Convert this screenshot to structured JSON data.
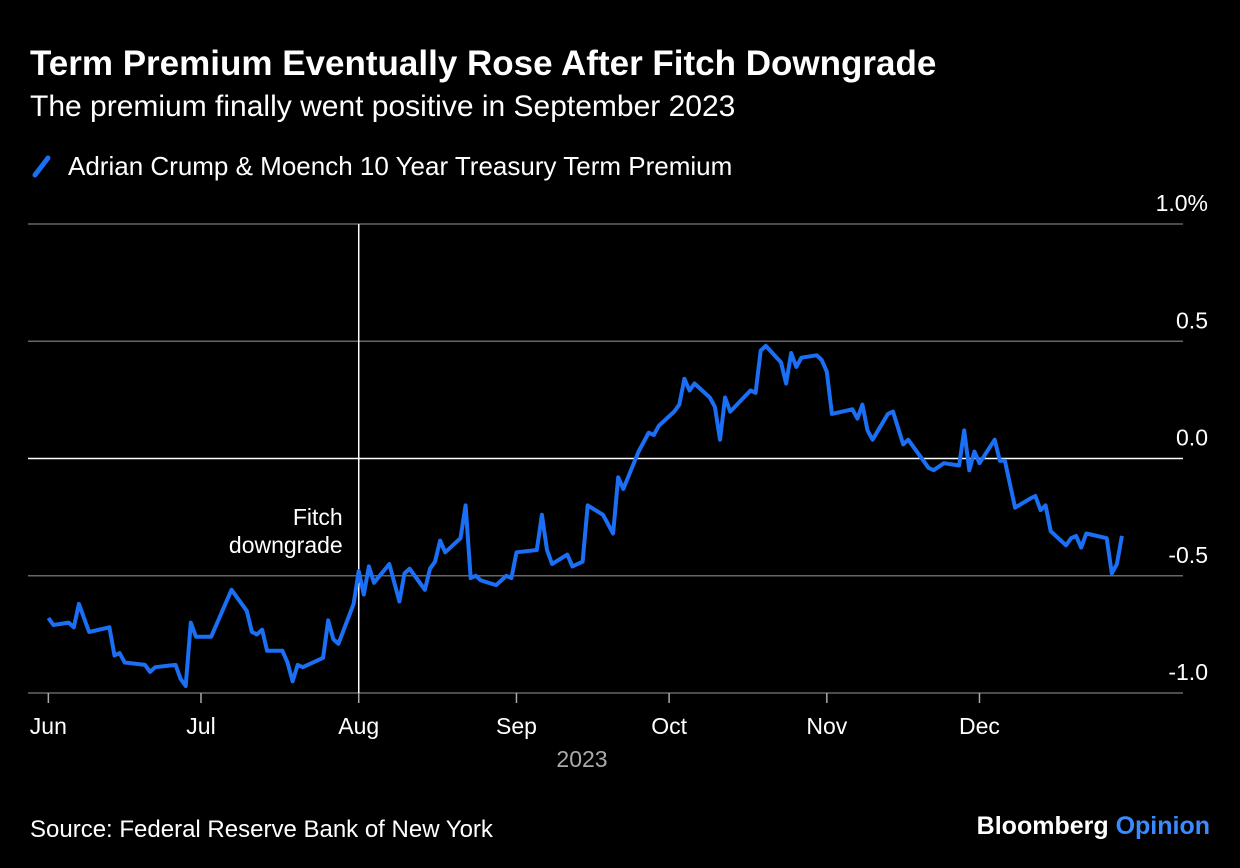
{
  "chart_data": {
    "type": "line",
    "title": "Term Premium Eventually Rose After Fitch Downgrade",
    "subtitle": "The premium finally went positive in September 2023",
    "xlabel": "2023",
    "source": "Source: Federal Reserve Bank of New York",
    "brand": [
      "Bloomberg",
      "Opinion"
    ],
    "annotation": {
      "x": "2023-08-01",
      "label": [
        "Fitch",
        "downgrade"
      ]
    },
    "xlim": [
      "2023-05-28",
      "2024-01-10"
    ],
    "xticks": [
      {
        "value": "2023-06-01",
        "label": "Jun"
      },
      {
        "value": "2023-07-01",
        "label": "Jul"
      },
      {
        "value": "2023-08-01",
        "label": "Aug"
      },
      {
        "value": "2023-09-01",
        "label": "Sep"
      },
      {
        "value": "2023-10-01",
        "label": "Oct"
      },
      {
        "value": "2023-11-01",
        "label": "Nov"
      },
      {
        "value": "2023-12-01",
        "label": "Dec"
      }
    ],
    "ylim": [
      -1.0,
      1.0
    ],
    "yticks": [
      {
        "value": 1,
        "label": "1.0%"
      },
      {
        "value": 0.5,
        "label": "0.5"
      },
      {
        "value": 0,
        "label": "0.0"
      },
      {
        "value": -0.5,
        "label": "-0.5"
      },
      {
        "value": -1,
        "label": "-1.0"
      }
    ],
    "grid": true,
    "x": [
      "2023-06-01",
      "2023-06-02",
      "2023-06-05",
      "2023-06-06",
      "2023-06-07",
      "2023-06-09",
      "2023-06-13",
      "2023-06-14",
      "2023-06-15",
      "2023-06-16",
      "2023-06-20",
      "2023-06-21",
      "2023-06-22",
      "2023-06-26",
      "2023-06-27",
      "2023-06-28",
      "2023-06-29",
      "2023-06-30",
      "2023-07-03",
      "2023-07-07",
      "2023-07-10",
      "2023-07-11",
      "2023-07-12",
      "2023-07-13",
      "2023-07-14",
      "2023-07-17",
      "2023-07-18",
      "2023-07-19",
      "2023-07-20",
      "2023-07-21",
      "2023-07-25",
      "2023-07-26",
      "2023-07-27",
      "2023-07-28",
      "2023-07-31",
      "2023-08-01",
      "2023-08-02",
      "2023-08-03",
      "2023-08-04",
      "2023-08-07",
      "2023-08-09",
      "2023-08-10",
      "2023-08-11",
      "2023-08-14",
      "2023-08-15",
      "2023-08-16",
      "2023-08-17",
      "2023-08-18",
      "2023-08-21",
      "2023-08-22",
      "2023-08-23",
      "2023-08-24",
      "2023-08-25",
      "2023-08-28",
      "2023-08-30",
      "2023-08-31",
      "2023-09-01",
      "2023-09-05",
      "2023-09-06",
      "2023-09-07",
      "2023-09-08",
      "2023-09-11",
      "2023-09-12",
      "2023-09-14",
      "2023-09-15",
      "2023-09-18",
      "2023-09-20",
      "2023-09-21",
      "2023-09-22",
      "2023-09-25",
      "2023-09-27",
      "2023-09-28",
      "2023-09-29",
      "2023-10-02",
      "2023-10-03",
      "2023-10-04",
      "2023-10-05",
      "2023-10-06",
      "2023-10-09",
      "2023-10-10",
      "2023-10-11",
      "2023-10-12",
      "2023-10-13",
      "2023-10-17",
      "2023-10-18",
      "2023-10-19",
      "2023-10-20",
      "2023-10-23",
      "2023-10-24",
      "2023-10-25",
      "2023-10-26",
      "2023-10-27",
      "2023-10-30",
      "2023-10-31",
      "2023-11-01",
      "2023-11-02",
      "2023-11-06",
      "2023-11-07",
      "2023-11-08",
      "2023-11-09",
      "2023-11-10",
      "2023-11-13",
      "2023-11-14",
      "2023-11-16",
      "2023-11-17",
      "2023-11-20",
      "2023-11-21",
      "2023-11-22",
      "2023-11-24",
      "2023-11-27",
      "2023-11-28",
      "2023-11-29",
      "2023-11-30",
      "2023-12-01",
      "2023-12-04",
      "2023-12-05",
      "2023-12-06",
      "2023-12-07",
      "2023-12-08",
      "2023-12-11",
      "2023-12-12",
      "2023-12-13",
      "2023-12-14",
      "2023-12-15",
      "2023-12-18",
      "2023-12-19",
      "2023-12-20",
      "2023-12-21",
      "2023-12-22",
      "2023-12-26",
      "2023-12-27",
      "2023-12-28",
      "2023-12-29"
    ],
    "series": [
      {
        "name": "Adrian Crump & Moench 10 Year Treasury Term Premium",
        "color": "#1a6ff5",
        "values": [
          -0.68,
          -0.71,
          -0.7,
          -0.72,
          -0.62,
          -0.74,
          -0.72,
          -0.84,
          -0.83,
          -0.87,
          -0.88,
          -0.91,
          -0.89,
          -0.88,
          -0.94,
          -0.97,
          -0.7,
          -0.76,
          -0.76,
          -0.56,
          -0.65,
          -0.74,
          -0.75,
          -0.73,
          -0.82,
          -0.82,
          -0.87,
          -0.95,
          -0.88,
          -0.89,
          -0.85,
          -0.69,
          -0.77,
          -0.79,
          -0.62,
          -0.48,
          -0.58,
          -0.46,
          -0.53,
          -0.45,
          -0.61,
          -0.49,
          -0.47,
          -0.56,
          -0.47,
          -0.44,
          -0.35,
          -0.4,
          -0.34,
          -0.2,
          -0.51,
          -0.5,
          -0.52,
          -0.54,
          -0.5,
          -0.51,
          -0.4,
          -0.39,
          -0.24,
          -0.39,
          -0.45,
          -0.41,
          -0.46,
          -0.44,
          -0.2,
          -0.24,
          -0.32,
          -0.08,
          -0.13,
          0.03,
          0.11,
          0.1,
          0.14,
          0.2,
          0.23,
          0.34,
          0.29,
          0.32,
          0.26,
          0.22,
          0.08,
          0.26,
          0.2,
          0.29,
          0.28,
          0.46,
          0.48,
          0.41,
          0.32,
          0.45,
          0.39,
          0.43,
          0.44,
          0.42,
          0.37,
          0.19,
          0.21,
          0.17,
          0.23,
          0.12,
          0.08,
          0.19,
          0.2,
          0.06,
          0.08,
          -0.01,
          -0.04,
          -0.05,
          -0.02,
          -0.03,
          0.12,
          -0.05,
          0.03,
          -0.02,
          0.08,
          -0.01,
          -0.01,
          -0.11,
          -0.21,
          -0.17,
          -0.16,
          -0.22,
          -0.2,
          -0.31,
          -0.37,
          -0.34,
          -0.33,
          -0.38,
          -0.32,
          -0.34,
          -0.49,
          -0.45,
          -0.33
        ]
      }
    ]
  }
}
